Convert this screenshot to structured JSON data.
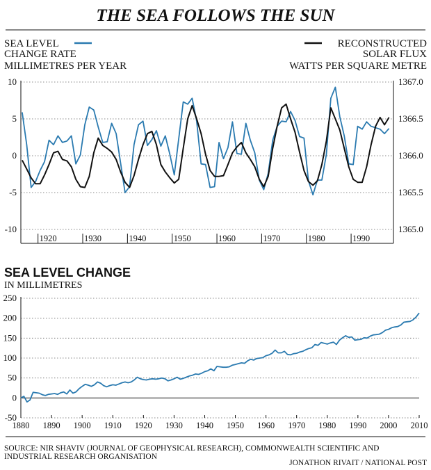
{
  "header": {
    "title": "THE SEA FOLLOWS THE SUN"
  },
  "chart_data": [
    {
      "type": "line",
      "legend_left": {
        "lines": [
          "SEA LEVEL",
          "CHANGE RATE",
          "MILLIMETRES PER YEAR"
        ],
        "color": "#2a7ab0"
      },
      "legend_right": {
        "lines": [
          "RECONSTRUCTED",
          "SOLAR FLUX",
          "WATTS PER SQUARE METRE"
        ],
        "color": "#111111"
      },
      "xlim": [
        1915.7,
        1999
      ],
      "x_ticks": [
        1920,
        1930,
        1940,
        1950,
        1960,
        1970,
        1980,
        1990
      ],
      "left_axis": {
        "lim": [
          -10,
          10
        ],
        "ticks": [
          10,
          5,
          0,
          -5,
          -10
        ],
        "tick_labels": [
          "10",
          "5",
          "0",
          "-5",
          "-10"
        ]
      },
      "right_axis": {
        "lim": [
          1365.0,
          1367.0
        ],
        "ticks": [
          1367.0,
          1366.5,
          1366.0,
          1365.5,
          1365.0
        ],
        "tick_labels": [
          "1367.0",
          "1366.5",
          "1366.0",
          "1365.5",
          "1365.0"
        ]
      },
      "grid": "horizontal dotted",
      "series": [
        {
          "name": "SEA LEVEL CHANGE RATE",
          "color": "#2a7ab0",
          "axis": "left",
          "x": [
            1916,
            1917,
            1918,
            1919,
            1920,
            1921,
            1922,
            1923,
            1924,
            1925,
            1926,
            1927,
            1928,
            1929,
            1930,
            1931,
            1932,
            1933,
            1934,
            1935,
            1936,
            1937,
            1938,
            1939,
            1940,
            1941,
            1942,
            1943,
            1944,
            1945,
            1946,
            1947,
            1948,
            1949,
            1950,
            1951,
            1952,
            1953,
            1954,
            1955,
            1956,
            1957,
            1958,
            1959,
            1960,
            1961,
            1962,
            1963,
            1964,
            1965,
            1966,
            1967,
            1968,
            1969,
            1970,
            1971,
            1972,
            1973,
            1974,
            1975,
            1976,
            1977,
            1978,
            1979,
            1980,
            1981,
            1982,
            1983,
            1984,
            1985,
            1986,
            1987,
            1988,
            1989,
            1990,
            1991,
            1992,
            1993,
            1994,
            1995,
            1996,
            1997,
            1998
          ],
          "y": [
            5.9,
            1.5,
            -4.3,
            -3.5,
            -2,
            -0.8,
            2.1,
            1.5,
            2.7,
            1.8,
            2.0,
            2.7,
            -1.1,
            0.1,
            4.2,
            6.6,
            6.2,
            3.9,
            1.8,
            1.9,
            4.4,
            3.0,
            -1.0,
            -5.0,
            -4.2,
            1.5,
            4.2,
            4.7,
            1.4,
            2.2,
            3.4,
            1.3,
            2.7,
            0.2,
            -2.6,
            2.3,
            7.3,
            7.0,
            7.8,
            4.7,
            -1.1,
            -1.2,
            -4.3,
            -4.2,
            1.8,
            -0.4,
            1.1,
            4.6,
            0.3,
            0.2,
            4.4,
            2.1,
            0.4,
            -3.3,
            -4.6,
            -2.4,
            2.1,
            4.0,
            4.7,
            4.6,
            6.0,
            4.8,
            2.6,
            2.4,
            -3.4,
            -5.3,
            -3.3,
            -3.3,
            0.2,
            7.8,
            9.3,
            5.3,
            2.7,
            -1.1,
            -1.2,
            4.0,
            3.6,
            4.6,
            4.0,
            3.8,
            3.6,
            3.0,
            3.7
          ]
        },
        {
          "name": "RECONSTRUCTED SOLAR FLUX",
          "color": "#111111",
          "axis": "right",
          "x": [
            1916,
            1917,
            1918,
            1919,
            1920,
            1921,
            1922,
            1923,
            1924,
            1925,
            1926,
            1927,
            1928,
            1929,
            1930,
            1931,
            1932,
            1933,
            1934,
            1935,
            1936,
            1937,
            1938,
            1939,
            1940,
            1941,
            1942,
            1943,
            1944,
            1945,
            1946,
            1947,
            1948,
            1949,
            1950,
            1951,
            1952,
            1953,
            1954,
            1955,
            1956,
            1957,
            1958,
            1959,
            1960,
            1961,
            1962,
            1963,
            1964,
            1965,
            1966,
            1967,
            1968,
            1969,
            1970,
            1971,
            1972,
            1973,
            1974,
            1975,
            1976,
            1977,
            1978,
            1979,
            1980,
            1981,
            1982,
            1983,
            1984,
            1985,
            1986,
            1987,
            1988,
            1989,
            1990,
            1991,
            1992,
            1993,
            1994,
            1995,
            1996,
            1997,
            1998
          ],
          "y": [
            1365.94,
            1365.82,
            1365.7,
            1365.62,
            1365.62,
            1365.74,
            1365.88,
            1366.04,
            1366.06,
            1365.95,
            1365.93,
            1365.85,
            1365.68,
            1365.58,
            1365.57,
            1365.72,
            1366.04,
            1366.24,
            1366.14,
            1366.1,
            1366.05,
            1365.95,
            1365.78,
            1365.64,
            1365.57,
            1365.73,
            1365.95,
            1366.15,
            1366.3,
            1366.33,
            1366.15,
            1365.88,
            1365.78,
            1365.7,
            1365.63,
            1365.68,
            1366.1,
            1366.5,
            1366.68,
            1366.5,
            1366.3,
            1366.02,
            1365.8,
            1365.72,
            1365.72,
            1365.73,
            1365.88,
            1366.04,
            1366.12,
            1366.18,
            1366.04,
            1365.95,
            1365.85,
            1365.68,
            1365.58,
            1365.72,
            1366.1,
            1366.4,
            1366.65,
            1366.7,
            1366.5,
            1366.32,
            1366.05,
            1365.8,
            1365.65,
            1365.6,
            1365.66,
            1365.88,
            1366.2,
            1366.65,
            1366.5,
            1366.35,
            1366.1,
            1365.85,
            1365.68,
            1365.64,
            1365.64,
            1365.85,
            1366.15,
            1366.4,
            1366.52,
            1366.42,
            1366.52
          ]
        }
      ]
    },
    {
      "type": "line",
      "title": "SEA LEVEL CHANGE",
      "subtitle": "IN MILLIMETRES",
      "xlim": [
        1880,
        2010
      ],
      "ylim": [
        -50,
        250
      ],
      "x_ticks": [
        1880,
        1890,
        1900,
        1910,
        1920,
        1930,
        1940,
        1950,
        1960,
        1970,
        1980,
        1990,
        2000,
        2010
      ],
      "y_ticks": [
        250,
        200,
        150,
        100,
        50,
        0,
        -50
      ],
      "grid": "horizontal dotted",
      "zero_line": true,
      "series": [
        {
          "name": "SEA LEVEL CHANGE",
          "color": "#2a7ab0",
          "x": [
            1880,
            1881,
            1882,
            1883,
            1884,
            1885,
            1886,
            1887,
            1888,
            1889,
            1890,
            1891,
            1892,
            1893,
            1894,
            1895,
            1896,
            1897,
            1898,
            1899,
            1900,
            1901,
            1902,
            1903,
            1904,
            1905,
            1906,
            1907,
            1908,
            1909,
            1910,
            1911,
            1912,
            1913,
            1914,
            1915,
            1916,
            1917,
            1918,
            1919,
            1920,
            1921,
            1922,
            1923,
            1924,
            1925,
            1926,
            1927,
            1928,
            1929,
            1930,
            1931,
            1932,
            1933,
            1934,
            1935,
            1936,
            1937,
            1938,
            1939,
            1940,
            1941,
            1942,
            1943,
            1944,
            1945,
            1946,
            1947,
            1948,
            1949,
            1950,
            1951,
            1952,
            1953,
            1954,
            1955,
            1956,
            1957,
            1958,
            1959,
            1960,
            1961,
            1962,
            1963,
            1964,
            1965,
            1966,
            1967,
            1968,
            1969,
            1970,
            1971,
            1972,
            1973,
            1974,
            1975,
            1976,
            1977,
            1978,
            1979,
            1980,
            1981,
            1982,
            1983,
            1984,
            1985,
            1986,
            1987,
            1988,
            1989,
            1990,
            1991,
            1992,
            1993,
            1994,
            1995,
            1996,
            1997,
            1998,
            1999,
            2000,
            2001,
            2002,
            2003,
            2004,
            2005,
            2006,
            2007,
            2008,
            2009,
            2010
          ],
          "y": [
            0,
            4,
            -10,
            -5,
            14,
            13,
            12,
            8,
            6,
            9,
            10,
            11,
            9,
            13,
            15,
            10,
            20,
            12,
            15,
            23,
            29,
            34,
            32,
            29,
            33,
            40,
            37,
            31,
            28,
            31,
            33,
            32,
            35,
            38,
            40,
            38,
            40,
            45,
            52,
            48,
            46,
            45,
            47,
            48,
            47,
            48,
            50,
            48,
            43,
            45,
            48,
            52,
            47,
            49,
            52,
            55,
            57,
            60,
            59,
            62,
            66,
            68,
            73,
            68,
            79,
            78,
            77,
            77,
            78,
            82,
            84,
            86,
            88,
            87,
            93,
            97,
            95,
            99,
            100,
            101,
            106,
            108,
            112,
            120,
            113,
            113,
            117,
            109,
            108,
            111,
            112,
            115,
            117,
            121,
            124,
            126,
            134,
            132,
            139,
            137,
            135,
            138,
            140,
            134,
            145,
            151,
            156,
            152,
            153,
            145,
            146,
            147,
            151,
            150,
            155,
            158,
            159,
            160,
            164,
            170,
            172,
            176,
            178,
            179,
            183,
            190,
            191,
            192,
            196,
            203,
            213
          ]
        }
      ]
    }
  ],
  "footer": {
    "source_line1": "SOURCE:  NIR SHAVIV (JOURNAL OF GEOPHYSICAL RESEARCH), COMMONWEALTH SCIENTIFIC AND",
    "source_line2": "INDUSTRIAL RESEARCH ORGANISATION",
    "credit": "JONATHON RIVAIT / NATIONAL POST"
  }
}
